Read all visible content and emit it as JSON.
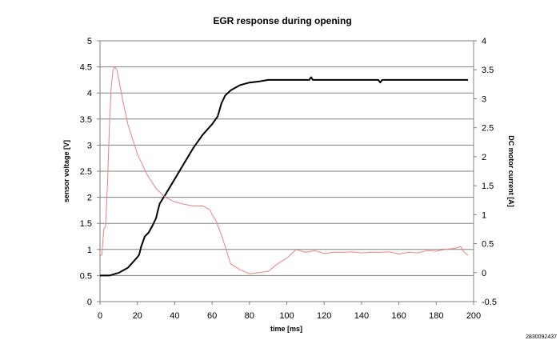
{
  "chart_data": {
    "type": "line",
    "title": "EGR response during opening",
    "xlabel": "time [ms]",
    "ylabel_left": "sensor voltage [V]",
    "ylabel_right": "DC motor current [A]",
    "xlim": [
      0,
      200
    ],
    "ylim_left": [
      0,
      5
    ],
    "ylim_right": [
      -0.5,
      4
    ],
    "x_ticks": [
      0,
      20,
      40,
      60,
      80,
      100,
      120,
      140,
      160,
      180,
      200
    ],
    "y_left_ticks": [
      0,
      0.5,
      1,
      1.5,
      2,
      2.5,
      3,
      3.5,
      4,
      4.5,
      5
    ],
    "y_right_ticks": [
      -0.5,
      0,
      0.5,
      1,
      1.5,
      2,
      2.5,
      3,
      3.5,
      4
    ],
    "grid": "horizontal",
    "footnote": "2830092437",
    "series": [
      {
        "axis": "left",
        "color": "#000000",
        "points": [
          [
            0,
            0.5
          ],
          [
            5,
            0.5
          ],
          [
            10,
            0.55
          ],
          [
            15,
            0.65
          ],
          [
            20,
            0.85
          ],
          [
            21,
            0.9
          ],
          [
            22,
            1.05
          ],
          [
            24,
            1.25
          ],
          [
            26,
            1.32
          ],
          [
            28,
            1.45
          ],
          [
            30,
            1.6
          ],
          [
            31,
            1.75
          ],
          [
            32,
            1.88
          ],
          [
            35,
            2.05
          ],
          [
            40,
            2.35
          ],
          [
            45,
            2.65
          ],
          [
            50,
            2.95
          ],
          [
            55,
            3.2
          ],
          [
            60,
            3.4
          ],
          [
            63,
            3.55
          ],
          [
            65,
            3.8
          ],
          [
            67,
            3.95
          ],
          [
            70,
            4.05
          ],
          [
            75,
            4.15
          ],
          [
            80,
            4.2
          ],
          [
            85,
            4.22
          ],
          [
            90,
            4.25
          ],
          [
            100,
            4.25
          ],
          [
            112,
            4.25
          ],
          [
            113,
            4.3
          ],
          [
            114,
            4.25
          ],
          [
            130,
            4.25
          ],
          [
            149,
            4.25
          ],
          [
            150,
            4.2
          ],
          [
            151,
            4.25
          ],
          [
            170,
            4.25
          ],
          [
            190,
            4.25
          ],
          [
            197,
            4.25
          ]
        ]
      },
      {
        "axis": "right",
        "color": "#f08080",
        "points": [
          [
            0,
            0.3
          ],
          [
            1,
            0.3
          ],
          [
            2,
            0.75
          ],
          [
            3,
            0.8
          ],
          [
            4,
            1.5
          ],
          [
            5,
            2.5
          ],
          [
            6,
            3.2
          ],
          [
            7,
            3.5
          ],
          [
            8,
            3.55
          ],
          [
            9,
            3.5
          ],
          [
            10,
            3.35
          ],
          [
            12,
            3.0
          ],
          [
            15,
            2.55
          ],
          [
            20,
            2.05
          ],
          [
            25,
            1.7
          ],
          [
            30,
            1.45
          ],
          [
            35,
            1.3
          ],
          [
            40,
            1.22
          ],
          [
            45,
            1.18
          ],
          [
            50,
            1.15
          ],
          [
            55,
            1.15
          ],
          [
            58,
            1.1
          ],
          [
            59,
            1.08
          ],
          [
            60,
            1.0
          ],
          [
            62,
            0.9
          ],
          [
            65,
            0.65
          ],
          [
            68,
            0.35
          ],
          [
            70,
            0.15
          ],
          [
            75,
            0.05
          ],
          [
            80,
            -0.02
          ],
          [
            85,
            0.0
          ],
          [
            90,
            0.02
          ],
          [
            95,
            0.15
          ],
          [
            100,
            0.25
          ],
          [
            105,
            0.4
          ],
          [
            110,
            0.35
          ],
          [
            115,
            0.38
          ],
          [
            120,
            0.33
          ],
          [
            125,
            0.35
          ],
          [
            130,
            0.35
          ],
          [
            135,
            0.36
          ],
          [
            140,
            0.34
          ],
          [
            145,
            0.35
          ],
          [
            150,
            0.35
          ],
          [
            155,
            0.36
          ],
          [
            160,
            0.32
          ],
          [
            165,
            0.35
          ],
          [
            170,
            0.34
          ],
          [
            175,
            0.38
          ],
          [
            180,
            0.37
          ],
          [
            185,
            0.4
          ],
          [
            190,
            0.42
          ],
          [
            193,
            0.45
          ],
          [
            195,
            0.35
          ],
          [
            197,
            0.3
          ]
        ]
      }
    ]
  }
}
